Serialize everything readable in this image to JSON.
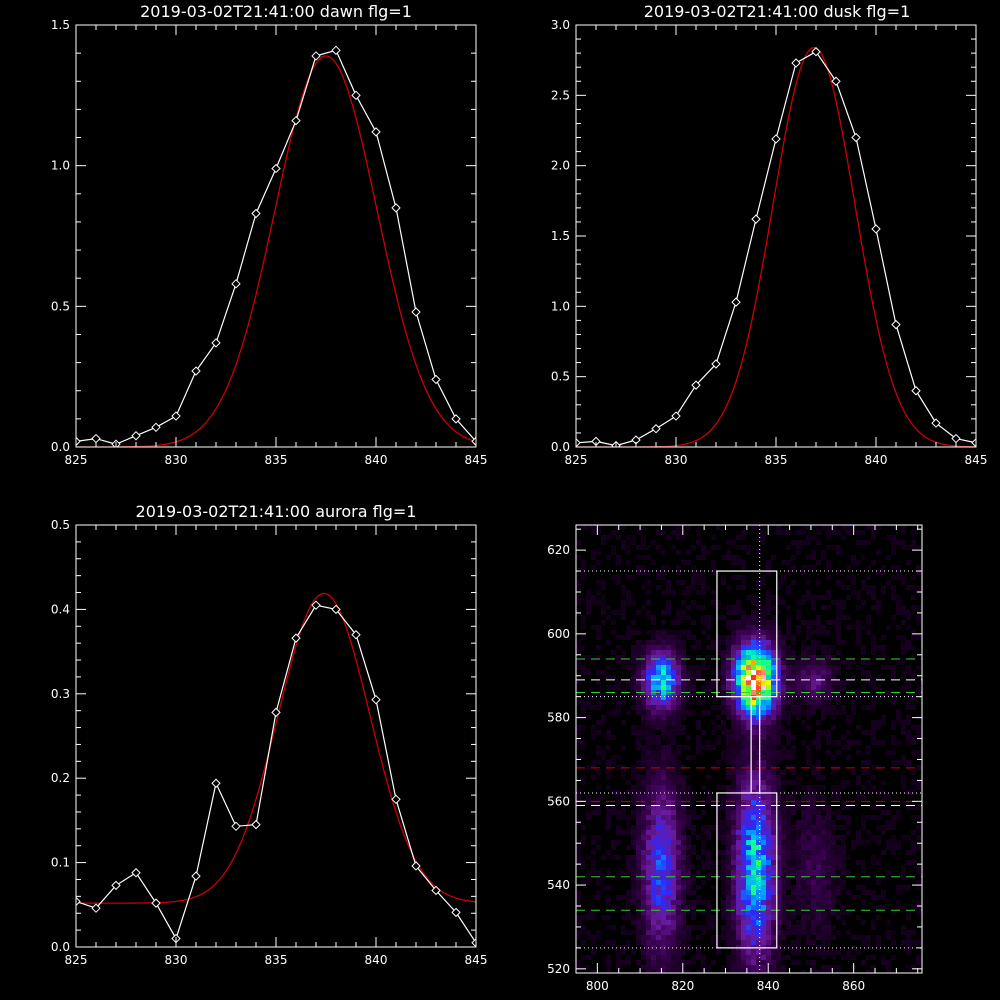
{
  "chart_data": [
    {
      "type": "line",
      "title": "2019-03-02T21:41:00 dawn flg=1",
      "xlim": [
        825,
        845
      ],
      "ylim": [
        0,
        1.5
      ],
      "x_ticks": [
        "825",
        "830",
        "835",
        "840",
        "845"
      ],
      "y_ticks": [
        "0.0",
        "0.5",
        "1.0",
        "1.5"
      ],
      "series": [
        {
          "role": "observed",
          "color": "#ffffff",
          "marker": "diamond",
          "x": [
            825,
            826,
            827,
            828,
            829,
            830,
            831,
            832,
            833,
            834,
            835,
            836,
            837,
            838,
            839,
            840,
            841,
            842,
            843,
            844,
            845
          ],
          "y": [
            0.02,
            0.03,
            0.01,
            0.04,
            0.07,
            0.11,
            0.27,
            0.37,
            0.58,
            0.83,
            0.99,
            1.16,
            1.39,
            1.41,
            1.25,
            1.12,
            0.85,
            0.48,
            0.24,
            0.1,
            0.02
          ]
        },
        {
          "role": "fit",
          "color": "#cc0000",
          "gauss": {
            "a": 1.39,
            "mu": 837.5,
            "sigma": 2.55,
            "c": 0.0
          }
        }
      ]
    },
    {
      "type": "line",
      "title": "2019-03-02T21:41:00 dusk flg=1",
      "xlim": [
        825,
        845
      ],
      "ylim": [
        0,
        3.0
      ],
      "x_ticks": [
        "825",
        "830",
        "835",
        "840",
        "845"
      ],
      "y_ticks": [
        "0.0",
        "0.5",
        "1.0",
        "1.5",
        "2.0",
        "2.5",
        "3.0"
      ],
      "series": [
        {
          "role": "observed",
          "color": "#ffffff",
          "marker": "diamond",
          "x": [
            825,
            826,
            827,
            828,
            829,
            830,
            831,
            832,
            833,
            834,
            835,
            836,
            837,
            838,
            839,
            840,
            841,
            842,
            843,
            844,
            845
          ],
          "y": [
            0.03,
            0.04,
            0.01,
            0.05,
            0.13,
            0.22,
            0.44,
            0.59,
            1.03,
            1.62,
            2.19,
            2.73,
            2.81,
            2.6,
            2.2,
            1.55,
            0.87,
            0.4,
            0.17,
            0.06,
            0.03
          ]
        },
        {
          "role": "fit",
          "color": "#cc0000",
          "gauss": {
            "a": 2.84,
            "mu": 836.9,
            "sigma": 2.05,
            "c": 0.0
          }
        }
      ]
    },
    {
      "type": "line",
      "title": "2019-03-02T21:41:00 aurora flg=1",
      "xlim": [
        825,
        845
      ],
      "ylim": [
        0,
        0.5
      ],
      "x_ticks": [
        "825",
        "830",
        "835",
        "840",
        "845"
      ],
      "y_ticks": [
        "0.0",
        "0.1",
        "0.2",
        "0.3",
        "0.4",
        "0.5"
      ],
      "series": [
        {
          "role": "observed",
          "color": "#ffffff",
          "marker": "diamond",
          "x": [
            825,
            826,
            827,
            828,
            829,
            830,
            831,
            832,
            833,
            834,
            835,
            836,
            837,
            838,
            839,
            840,
            841,
            842,
            843,
            844,
            845
          ],
          "y": [
            0.054,
            0.046,
            0.073,
            0.088,
            0.052,
            0.01,
            0.084,
            0.194,
            0.143,
            0.145,
            0.278,
            0.366,
            0.405,
            0.4,
            0.37,
            0.293,
            0.175,
            0.096,
            0.067,
            0.041,
            0.005
          ]
        },
        {
          "role": "fit",
          "color": "#cc0000",
          "gauss": {
            "a": 0.367,
            "mu": 837.4,
            "sigma": 2.3,
            "c": 0.052
          }
        }
      ]
    },
    {
      "type": "heatmap",
      "xlim": [
        795,
        876
      ],
      "ylim": [
        519,
        626
      ],
      "x_ticks": [
        "800",
        "820",
        "840",
        "860"
      ],
      "y_ticks": [
        "520",
        "540",
        "560",
        "580",
        "600",
        "620"
      ],
      "colormap": [
        "#000000",
        "#3a0050",
        "#6a1a9a",
        "#2a2aff",
        "#00a0ff",
        "#00ffb0",
        "#40ff40",
        "#ffff00",
        "#ff2000",
        "#ffffff"
      ],
      "blobs": [
        {
          "x": 815,
          "y": 589,
          "sx": 2.8,
          "sy": 4.5,
          "v": 0.5
        },
        {
          "x": 837,
          "y": 589,
          "sx": 3.2,
          "sy": 5.5,
          "v": 1.0
        },
        {
          "x": 851,
          "y": 589,
          "sx": 3.0,
          "sy": 3.5,
          "v": 0.15
        },
        {
          "x": 815,
          "y": 544,
          "sx": 3.0,
          "sy": 13.0,
          "v": 0.32
        },
        {
          "x": 837,
          "y": 544,
          "sx": 3.0,
          "sy": 14.0,
          "v": 0.5
        },
        {
          "x": 851,
          "y": 544,
          "sx": 3.5,
          "sy": 10.0,
          "v": 0.08
        }
      ],
      "vlines": [
        {
          "x": 838,
          "color": "#ffffff",
          "dash": "dotted"
        }
      ],
      "hlines": [
        {
          "y": 615,
          "color": "#ffffff",
          "dash": "dotted"
        },
        {
          "y": 585,
          "color": "#ffffff",
          "dash": "dotted"
        },
        {
          "y": 562,
          "color": "#ffffff",
          "dash": "dotted"
        },
        {
          "y": 525,
          "color": "#ffffff",
          "dash": "dotted"
        },
        {
          "y": 594,
          "color": "#33cc33",
          "dash": "dashed"
        },
        {
          "y": 586,
          "color": "#33cc33",
          "dash": "dashed"
        },
        {
          "y": 589,
          "color": "#ffffff",
          "dash": "dashed"
        },
        {
          "y": 568,
          "color": "#cc0000",
          "dash": "dashed"
        },
        {
          "y": 560,
          "color": "#cc0000",
          "dash": "dashed"
        },
        {
          "y": 559,
          "color": "#ffffff",
          "dash": "dashed"
        },
        {
          "y": 542,
          "color": "#33cc33",
          "dash": "dashed"
        },
        {
          "y": 534,
          "color": "#33cc33",
          "dash": "dashed"
        }
      ],
      "boxes": [
        {
          "x0": 828,
          "x1": 842,
          "y0": 585,
          "y1": 615,
          "color": "#ffffff"
        },
        {
          "x0": 828,
          "x1": 842,
          "y0": 525,
          "y1": 562,
          "color": "#ffffff"
        },
        {
          "x0": 836,
          "x1": 838,
          "y0": 562,
          "y1": 585,
          "color": "#ffffff"
        }
      ]
    }
  ]
}
